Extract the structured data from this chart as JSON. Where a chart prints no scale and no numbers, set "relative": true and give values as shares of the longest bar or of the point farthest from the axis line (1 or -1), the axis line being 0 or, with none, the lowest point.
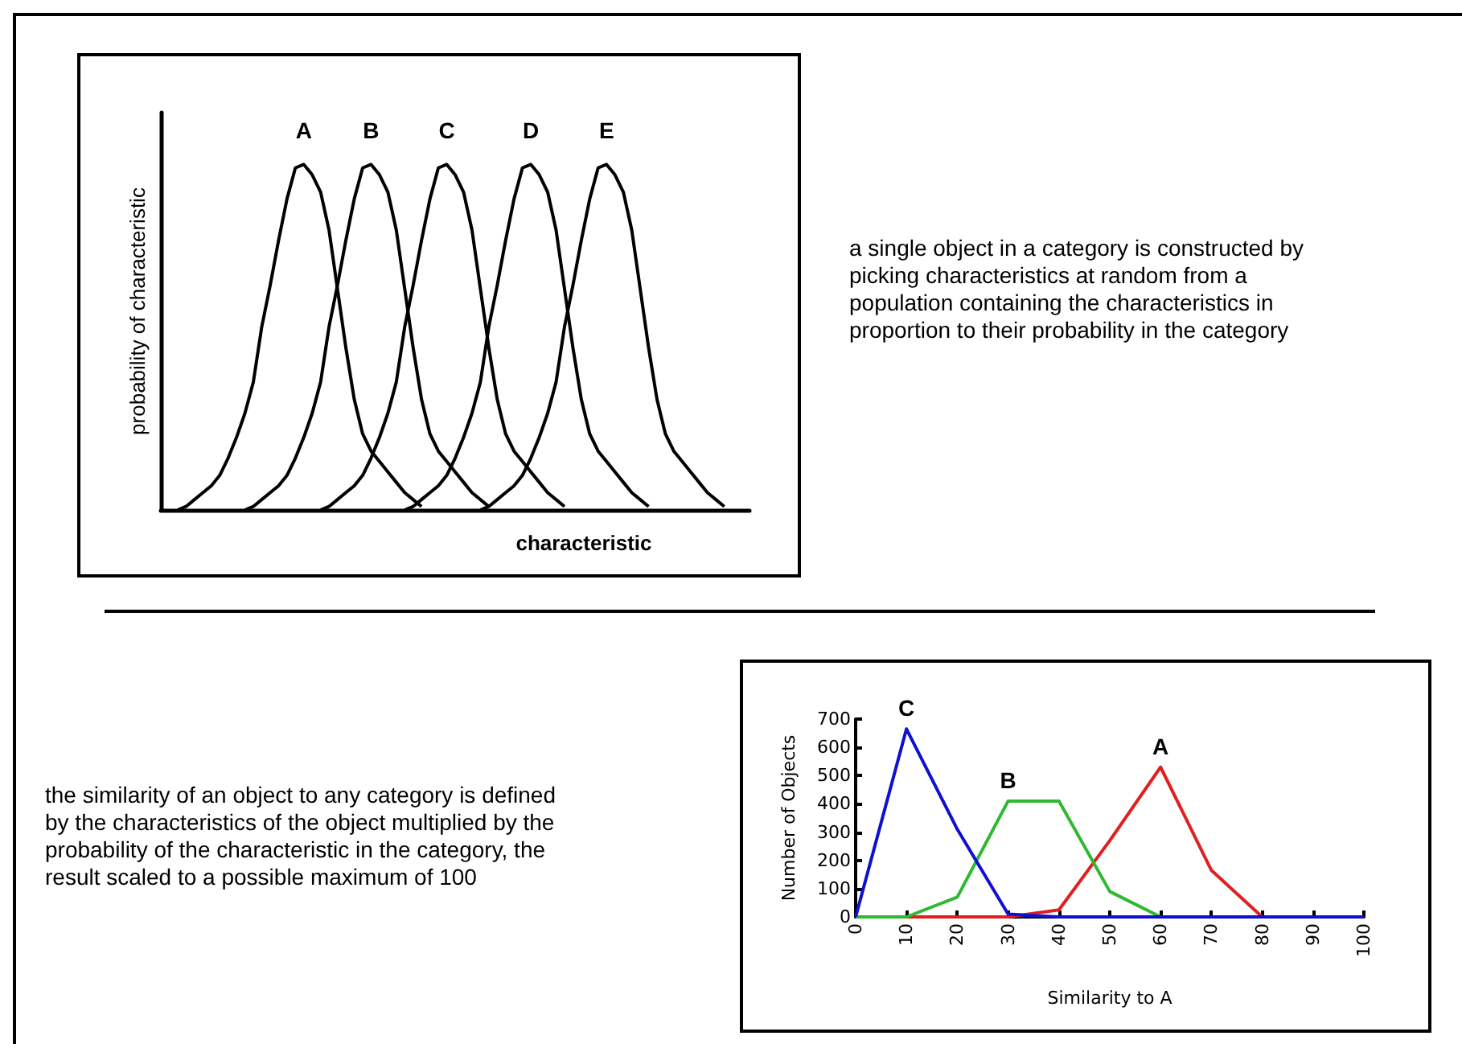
{
  "chart_data": [
    {
      "type": "line",
      "relative": true,
      "xlabel": "characteristic",
      "ylabel": "probability of characteristic",
      "grid": false,
      "legend": false,
      "marker": "none",
      "categories": [
        null,
        null,
        null,
        null,
        null,
        null,
        null,
        null,
        null,
        null,
        null,
        null,
        null,
        null,
        null,
        null,
        null,
        null,
        null,
        null,
        null,
        null,
        null,
        null,
        null,
        null,
        null,
        null,
        null,
        null,
        null,
        null,
        null,
        null,
        null,
        null,
        null,
        null,
        null,
        null,
        null,
        null,
        null,
        null,
        null,
        null,
        null,
        null,
        null,
        null,
        null,
        null,
        null,
        null,
        null,
        null,
        null,
        null,
        null,
        null,
        null,
        null,
        null,
        null,
        null,
        null,
        null,
        null,
        null,
        null,
        null
      ],
      "series": [
        {
          "name": "A",
          "color": "#000000",
          "values": [
            null,
            null,
            0,
            0.01,
            0.03,
            0.05,
            0.07,
            0.1,
            0.15,
            0.21,
            0.28,
            0.37,
            0.53,
            0.65,
            0.78,
            0.9,
            0.99,
            1,
            0.97,
            0.92,
            0.81,
            0.64,
            0.47,
            0.32,
            0.22,
            0.17,
            0.14,
            0.11,
            0.08,
            0.05,
            0.03,
            0.01,
            null,
            null,
            null,
            null,
            null,
            null,
            null,
            null,
            null,
            null,
            null,
            null,
            null,
            null,
            null,
            null,
            null,
            null,
            null,
            null,
            null,
            null,
            null,
            null,
            null,
            null,
            null,
            null,
            null,
            null,
            null,
            null,
            null,
            null,
            null,
            null,
            null,
            null,
            null
          ]
        },
        {
          "name": "B",
          "color": "#000000",
          "values": [
            null,
            null,
            null,
            null,
            null,
            null,
            null,
            null,
            null,
            null,
            0,
            0.01,
            0.03,
            0.05,
            0.07,
            0.1,
            0.15,
            0.21,
            0.28,
            0.37,
            0.53,
            0.65,
            0.78,
            0.9,
            0.99,
            1,
            0.97,
            0.92,
            0.81,
            0.64,
            0.47,
            0.32,
            0.22,
            0.17,
            0.14,
            0.11,
            0.08,
            0.05,
            0.03,
            0.01,
            null,
            null,
            null,
            null,
            null,
            null,
            null,
            null,
            null,
            null,
            null,
            null,
            null,
            null,
            null,
            null,
            null,
            null,
            null,
            null,
            null,
            null,
            null,
            null,
            null,
            null,
            null,
            null,
            null,
            null,
            null
          ]
        },
        {
          "name": "C",
          "color": "#000000",
          "values": [
            null,
            null,
            null,
            null,
            null,
            null,
            null,
            null,
            null,
            null,
            null,
            null,
            null,
            null,
            null,
            null,
            null,
            null,
            null,
            0,
            0.01,
            0.03,
            0.05,
            0.07,
            0.1,
            0.15,
            0.21,
            0.28,
            0.37,
            0.53,
            0.65,
            0.78,
            0.9,
            0.99,
            1,
            0.97,
            0.92,
            0.81,
            0.64,
            0.47,
            0.32,
            0.22,
            0.17,
            0.14,
            0.11,
            0.08,
            0.05,
            0.03,
            0.01,
            null,
            null,
            null,
            null,
            null,
            null,
            null,
            null,
            null,
            null,
            null,
            null,
            null,
            null,
            null,
            null,
            null,
            null,
            null,
            null,
            null,
            null
          ]
        },
        {
          "name": "D",
          "color": "#000000",
          "values": [
            null,
            null,
            null,
            null,
            null,
            null,
            null,
            null,
            null,
            null,
            null,
            null,
            null,
            null,
            null,
            null,
            null,
            null,
            null,
            null,
            null,
            null,
            null,
            null,
            null,
            null,
            null,
            null,
            null,
            0,
            0.01,
            0.03,
            0.05,
            0.07,
            0.1,
            0.15,
            0.21,
            0.28,
            0.37,
            0.53,
            0.65,
            0.78,
            0.9,
            0.99,
            1,
            0.97,
            0.92,
            0.81,
            0.64,
            0.47,
            0.32,
            0.22,
            0.17,
            0.14,
            0.11,
            0.08,
            0.05,
            0.03,
            0.01,
            null,
            null,
            null,
            null,
            null,
            null,
            null,
            null,
            null,
            null,
            null,
            null
          ]
        },
        {
          "name": "E",
          "color": "#000000",
          "values": [
            null,
            null,
            null,
            null,
            null,
            null,
            null,
            null,
            null,
            null,
            null,
            null,
            null,
            null,
            null,
            null,
            null,
            null,
            null,
            null,
            null,
            null,
            null,
            null,
            null,
            null,
            null,
            null,
            null,
            null,
            null,
            null,
            null,
            null,
            null,
            null,
            null,
            null,
            0,
            0.01,
            0.03,
            0.05,
            0.07,
            0.1,
            0.15,
            0.21,
            0.28,
            0.37,
            0.53,
            0.65,
            0.78,
            0.9,
            0.99,
            1,
            0.97,
            0.92,
            0.81,
            0.64,
            0.47,
            0.32,
            0.22,
            0.17,
            0.14,
            0.11,
            0.08,
            0.05,
            0.03,
            0.01,
            null,
            null,
            null
          ]
        }
      ],
      "annotations": [
        "a single object in a category is constructed by picking characteristics at random from a population containing the characteristics in proportion to their probability in the category"
      ]
    },
    {
      "type": "line",
      "xlabel": "Similarity to A",
      "ylabel": "Number of Objects",
      "grid": false,
      "legend": false,
      "marker": "none",
      "x": [
        0,
        10,
        20,
        30,
        40,
        50,
        60,
        70,
        80,
        90,
        100
      ],
      "xlim": [
        0,
        100
      ],
      "xticks": [
        0,
        10,
        20,
        30,
        40,
        50,
        60,
        70,
        80,
        90,
        100
      ],
      "ylim": [
        0,
        700
      ],
      "yticks": [
        0,
        100,
        200,
        300,
        400,
        500,
        600,
        700
      ],
      "series": [
        {
          "name": "A",
          "color": "#e02020",
          "values": [
            0,
            0,
            0,
            0,
            25,
            270,
            530,
            165,
            0,
            0,
            0
          ]
        },
        {
          "name": "B",
          "color": "#30b830",
          "values": [
            0,
            0,
            70,
            410,
            410,
            90,
            0,
            null,
            null,
            null,
            null
          ]
        },
        {
          "name": "C",
          "color": "#1010d0",
          "values": [
            0,
            665,
            310,
            10,
            0,
            0,
            0,
            0,
            0,
            0,
            0
          ]
        }
      ],
      "annotations": [
        "the similarity of an object to any category is defined by the characteristics of the object multiplied by the probability of the characteristic in the category, the result scaled to a possible maximum of 100"
      ]
    }
  ]
}
